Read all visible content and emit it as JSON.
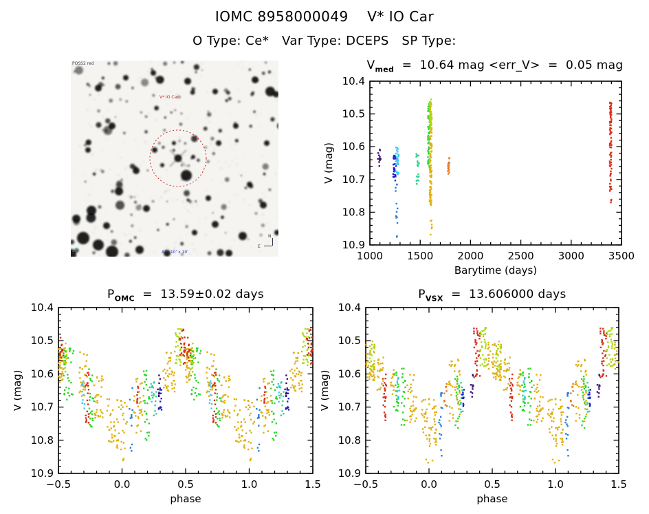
{
  "header": {
    "title": "IOMC 8958000049    V* IO Car",
    "subtitle": "O Type: Ce*   Var Type: DCEPS   SP Type:"
  },
  "palette": {
    "violet": "#3f0f72",
    "navy": "#2020cc",
    "cyan": "#3fc8ef",
    "blue": "#2a7fd4",
    "teal": "#2fd096",
    "green": "#2ed42a",
    "lime": "#a8da10",
    "gold": "#e0b010",
    "orange": "#e77817",
    "red": "#d6301a"
  },
  "finder": {
    "survey_label": "POSS2 red",
    "target_label": "V* IO Car",
    "scale_label": "30'",
    "size_label": "Δ = 10' x 10'",
    "compass_n": "N",
    "compass_e": "E",
    "circle_color": "#cc2222"
  },
  "chart_data": [
    {
      "id": "time-series",
      "type": "scatter",
      "title": {
        "pre": "V",
        "sub": "med",
        "post": "  =  10.64 mag <err_V>  =  0.05 mag"
      },
      "xlabel": "Barytime (days)",
      "ylabel": "V (mag)",
      "xlim": [
        1000,
        3500
      ],
      "ylim": [
        10.4,
        10.9
      ],
      "y_inverted": true,
      "grid": false,
      "xticks": [
        1000,
        1500,
        2000,
        2500,
        3000,
        3500
      ],
      "xtick_labels": [
        "1000",
        "1500",
        "2000",
        "2500",
        "3000",
        "3500"
      ],
      "yticks": [
        10.4,
        10.5,
        10.6,
        10.7,
        10.8,
        10.9
      ],
      "ytick_labels": [
        "10.4",
        "10.5",
        "10.6",
        "10.7",
        "10.8",
        "10.9"
      ],
      "xminor": 100,
      "yminor": 0.02,
      "repeat": 0,
      "clusters": [
        [
          1095,
          18,
          10.635,
          0.035,
          12,
          "violet"
        ],
        [
          1245,
          15,
          10.665,
          0.04,
          26,
          "navy"
        ],
        [
          1272,
          16,
          10.64,
          0.045,
          28,
          "cyan"
        ],
        [
          1265,
          10,
          10.775,
          0.06,
          11,
          "blue"
        ],
        [
          1268,
          4,
          10.875,
          0.008,
          2,
          "blue"
        ],
        [
          1475,
          14,
          10.675,
          0.06,
          20,
          "teal"
        ],
        [
          1585,
          9,
          10.565,
          0.1,
          50,
          "green"
        ],
        [
          1605,
          11,
          10.625,
          0.16,
          150,
          "gold"
        ],
        [
          1602,
          10,
          10.5,
          0.045,
          35,
          "lime"
        ],
        [
          1610,
          7,
          10.845,
          0.025,
          6,
          "gold"
        ],
        [
          1782,
          9,
          10.655,
          0.032,
          15,
          "orange"
        ],
        [
          3392,
          9,
          10.6,
          0.135,
          75,
          "red"
        ],
        [
          3395,
          5,
          10.762,
          0.012,
          3,
          "red"
        ]
      ]
    },
    {
      "id": "phase-omc",
      "type": "scatter",
      "title": {
        "pre": "P",
        "sub": "OMC",
        "post": "  =  13.59±0.02 days"
      },
      "xlabel": "phase",
      "ylabel": "V (mag)",
      "xlim": [
        -0.5,
        1.5
      ],
      "ylim": [
        10.4,
        10.9
      ],
      "y_inverted": true,
      "grid": false,
      "xticks": [
        -0.5,
        0.0,
        0.5,
        1.0,
        1.5
      ],
      "xtick_labels": [
        "−0.5",
        "0.0",
        "0.5",
        "1.0",
        "1.5"
      ],
      "yticks": [
        10.4,
        10.5,
        10.6,
        10.7,
        10.8,
        10.9
      ],
      "ytick_labels": [
        "10.4",
        "10.5",
        "10.6",
        "10.7",
        "10.8",
        "10.9"
      ],
      "xminor": 0.1,
      "yminor": 0.02,
      "repeat": 1.0,
      "clusters": [
        [
          -0.465,
          0.035,
          10.575,
          0.055,
          45,
          "gold"
        ],
        [
          -0.475,
          0.015,
          10.535,
          0.045,
          14,
          "red"
        ],
        [
          -0.455,
          0.02,
          10.55,
          0.05,
          14,
          "lime"
        ],
        [
          -0.42,
          0.04,
          10.6,
          0.08,
          30,
          "green"
        ],
        [
          -0.3,
          0.035,
          10.605,
          0.075,
          30,
          "gold"
        ],
        [
          -0.305,
          0.015,
          10.66,
          0.05,
          12,
          "cyan"
        ],
        [
          -0.275,
          0.015,
          10.67,
          0.09,
          22,
          "red"
        ],
        [
          -0.24,
          0.02,
          10.67,
          0.09,
          22,
          "green"
        ],
        [
          -0.185,
          0.035,
          10.67,
          0.07,
          32,
          "gold"
        ],
        [
          -0.04,
          0.08,
          10.75,
          0.08,
          55,
          "gold"
        ],
        [
          0.0,
          0.04,
          10.862,
          0.012,
          3,
          "gold"
        ],
        [
          0.07,
          0.012,
          10.745,
          0.105,
          12,
          "blue"
        ],
        [
          0.13,
          0.04,
          10.69,
          0.09,
          30,
          "gold"
        ],
        [
          0.12,
          0.012,
          10.655,
          0.035,
          8,
          "red"
        ],
        [
          0.195,
          0.025,
          10.69,
          0.11,
          28,
          "green"
        ],
        [
          0.24,
          0.012,
          10.66,
          0.04,
          8,
          "cyan"
        ],
        [
          0.255,
          0.018,
          10.675,
          0.055,
          12,
          "teal"
        ],
        [
          0.29,
          0.012,
          10.635,
          0.035,
          10,
          "violet"
        ],
        [
          0.3,
          0.012,
          10.675,
          0.035,
          12,
          "navy"
        ],
        [
          0.37,
          0.05,
          10.595,
          0.065,
          40,
          "gold"
        ],
        [
          0.445,
          0.025,
          10.52,
          0.06,
          30,
          "lime"
        ],
        [
          0.475,
          0.025,
          10.515,
          0.055,
          25,
          "red"
        ]
      ]
    },
    {
      "id": "phase-vsx",
      "type": "scatter",
      "title": {
        "pre": "P",
        "sub": "VSX",
        "post": "  =  13.606000 days"
      },
      "xlabel": "phase",
      "ylabel": "V (mag)",
      "xlim": [
        -0.5,
        1.5
      ],
      "ylim": [
        10.4,
        10.9
      ],
      "y_inverted": true,
      "grid": false,
      "xticks": [
        -0.5,
        0.0,
        0.5,
        1.0,
        1.5
      ],
      "xtick_labels": [
        "−0.5",
        "0.0",
        "0.5",
        "1.0",
        "1.5"
      ],
      "yticks": [
        10.4,
        10.5,
        10.6,
        10.7,
        10.8,
        10.9
      ],
      "ytick_labels": [
        "10.4",
        "10.5",
        "10.6",
        "10.7",
        "10.8",
        "10.9"
      ],
      "xminor": 0.1,
      "yminor": 0.02,
      "repeat": 1.0,
      "clusters": [
        [
          -0.46,
          0.04,
          10.565,
          0.055,
          45,
          "gold"
        ],
        [
          -0.45,
          0.02,
          10.545,
          0.045,
          18,
          "lime"
        ],
        [
          -0.385,
          0.025,
          10.6,
          0.05,
          22,
          "gold"
        ],
        [
          -0.35,
          0.015,
          10.67,
          0.07,
          24,
          "red"
        ],
        [
          -0.285,
          0.02,
          10.625,
          0.045,
          15,
          "gold"
        ],
        [
          -0.26,
          0.02,
          10.655,
          0.06,
          22,
          "green"
        ],
        [
          -0.245,
          0.012,
          10.645,
          0.035,
          10,
          "cyan"
        ],
        [
          -0.2,
          0.018,
          10.67,
          0.09,
          20,
          "green"
        ],
        [
          -0.14,
          0.04,
          10.675,
          0.075,
          35,
          "gold"
        ],
        [
          0.0,
          0.06,
          10.745,
          0.075,
          55,
          "gold"
        ],
        [
          0.0,
          0.03,
          10.862,
          0.012,
          3,
          "gold"
        ],
        [
          0.09,
          0.012,
          10.78,
          0.07,
          10,
          "blue"
        ],
        [
          0.1,
          0.01,
          10.685,
          0.035,
          6,
          "blue"
        ],
        [
          0.13,
          0.012,
          10.66,
          0.04,
          10,
          "orange"
        ],
        [
          0.2,
          0.045,
          10.65,
          0.095,
          40,
          "gold"
        ],
        [
          0.225,
          0.02,
          10.69,
          0.09,
          20,
          "green"
        ],
        [
          0.26,
          0.015,
          10.67,
          0.05,
          12,
          "teal"
        ],
        [
          0.265,
          0.012,
          10.675,
          0.03,
          10,
          "navy"
        ],
        [
          0.34,
          0.01,
          10.635,
          0.035,
          10,
          "violet"
        ],
        [
          0.38,
          0.025,
          10.54,
          0.08,
          35,
          "red"
        ],
        [
          0.43,
          0.025,
          10.52,
          0.06,
          30,
          "lime"
        ],
        [
          0.49,
          0.03,
          10.55,
          0.05,
          20,
          "gold"
        ]
      ]
    }
  ]
}
